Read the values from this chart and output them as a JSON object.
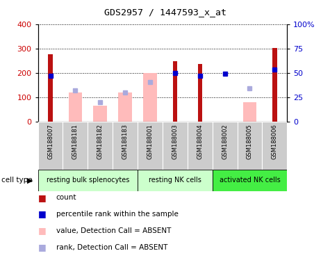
{
  "title": "GDS2957 / 1447593_x_at",
  "samples": [
    "GSM188007",
    "GSM188181",
    "GSM188182",
    "GSM188183",
    "GSM188001",
    "GSM188003",
    "GSM188004",
    "GSM188002",
    "GSM188005",
    "GSM188006"
  ],
  "count_values": [
    275,
    null,
    null,
    null,
    null,
    247,
    236,
    null,
    null,
    302
  ],
  "absent_value_bars": [
    null,
    120,
    65,
    118,
    200,
    null,
    null,
    null,
    80,
    null
  ],
  "absent_rank_bars": [
    null,
    128,
    80,
    120,
    163,
    null,
    null,
    null,
    135,
    null
  ],
  "percentile_rank": [
    47,
    null,
    null,
    null,
    null,
    50,
    47,
    49,
    null,
    53
  ],
  "ylim_left": [
    0,
    400
  ],
  "ylim_right": [
    0,
    100
  ],
  "yticks_left": [
    0,
    100,
    200,
    300,
    400
  ],
  "yticks_right": [
    0,
    25,
    50,
    75,
    100
  ],
  "ytick_labels_right": [
    "0",
    "25",
    "50",
    "75",
    "100%"
  ],
  "count_color": "#bb1111",
  "absent_value_color": "#ffbbbb",
  "absent_rank_color": "#aaaadd",
  "percentile_color": "#0000cc",
  "group_configs": [
    {
      "label": "resting bulk splenocytes",
      "start": 0,
      "end": 4,
      "color": "#ccffcc"
    },
    {
      "label": "resting NK cells",
      "start": 4,
      "end": 7,
      "color": "#ccffcc"
    },
    {
      "label": "activated NK cells",
      "start": 7,
      "end": 10,
      "color": "#44ee44"
    }
  ],
  "sample_bg": "#cccccc",
  "legend_labels": [
    "count",
    "percentile rank within the sample",
    "value, Detection Call = ABSENT",
    "rank, Detection Call = ABSENT"
  ],
  "legend_colors": [
    "#bb1111",
    "#0000cc",
    "#ffbbbb",
    "#aaaadd"
  ]
}
